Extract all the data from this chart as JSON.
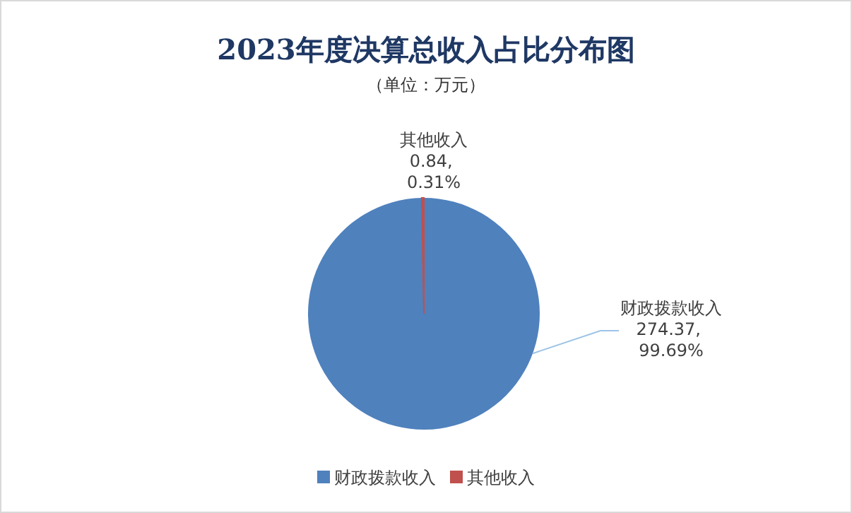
{
  "chart_data": {
    "type": "pie",
    "title": "2023年度决算总收入占比分布图",
    "subtitle": "（单位：万元）",
    "categories": [
      "财政拨款收入",
      "其他收入"
    ],
    "values": [
      274.37,
      0.84
    ],
    "colors": [
      "#4f81bd",
      "#c0504d"
    ],
    "value_labels": [
      "274.37, 99.69%",
      "0.84, 0.31%"
    ],
    "legend": "bottom"
  }
}
